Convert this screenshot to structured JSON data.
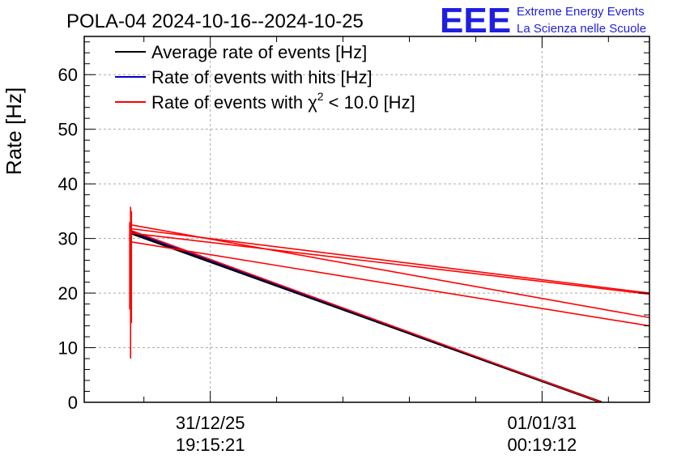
{
  "chart_data": {
    "type": "line",
    "title": "POLA-04 2024-10-16--2024-10-25",
    "ylabel": "Rate [Hz]",
    "xlabel": "",
    "ylim": [
      0,
      67
    ],
    "yticks": [
      0,
      10,
      20,
      30,
      40,
      50,
      60
    ],
    "xlim": [
      0,
      100
    ],
    "xticks": [
      {
        "x": 22.3,
        "label_line1": "31/12/25",
        "label_line2": "19:15:21"
      },
      {
        "x": 81.0,
        "label_line1": "01/01/31",
        "label_line2": "00:19:12"
      }
    ],
    "grid": true,
    "legend_position": "top-left",
    "series": [
      {
        "name": "Average rate of events [Hz]",
        "color": "#000000",
        "segments": [
          [
            [
              8.2,
              31.0
            ],
            [
              91.5,
              0.0
            ]
          ]
        ]
      },
      {
        "name": "Rate of events with hits [Hz]",
        "color": "#0000cc",
        "segments": [
          [
            [
              8.2,
              31.3
            ],
            [
              91.5,
              0.0
            ]
          ]
        ]
      },
      {
        "name": "Rate of events with χ² < 10.0 [Hz]",
        "legend_main": "Rate of events with χ",
        "legend_sup": "2",
        "legend_tail": " < 10.0 [Hz]",
        "color": "#ff0000",
        "segments": [
          [
            [
              8.2,
              31.5
            ],
            [
              91.5,
              0.0
            ]
          ],
          [
            [
              8.2,
              31.0
            ],
            [
              100,
              19.8
            ]
          ],
          [
            [
              8.2,
              32.5
            ],
            [
              100,
              15.5
            ]
          ],
          [
            [
              8.2,
              29.4
            ],
            [
              100,
              14.0
            ]
          ],
          [
            [
              8.2,
              31.8
            ],
            [
              100,
              20.0
            ]
          ]
        ],
        "spikes": [
          {
            "x": 8.2,
            "ymin": 8.0,
            "ymax": 35.8
          },
          {
            "x": 8.05,
            "ymin": 17.0,
            "ymax": 33.0
          },
          {
            "x": 8.35,
            "ymin": 14.5,
            "ymax": 35.0
          }
        ]
      }
    ]
  },
  "logo": {
    "mark": "EEE",
    "line1": "Extreme Energy Events",
    "line2": "La Scienza nelle Scuole",
    "color": "#1f1fe0"
  }
}
